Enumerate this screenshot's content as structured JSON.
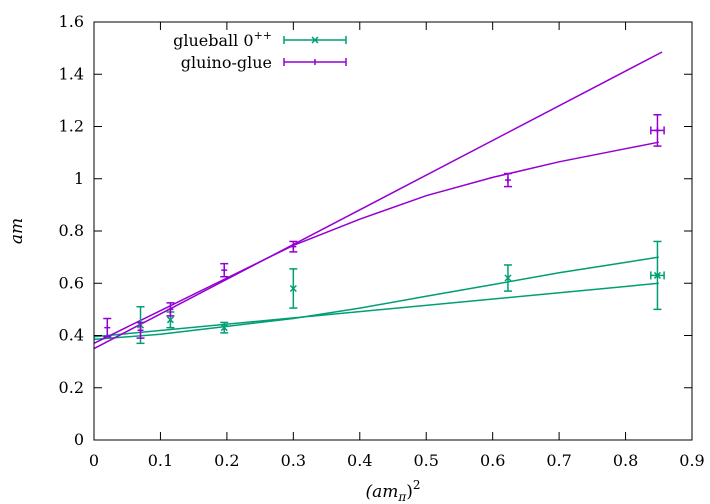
{
  "chart_data": {
    "type": "scatter",
    "title": "",
    "xlabel": "(am_π)^2",
    "ylabel": "am",
    "xlim": [
      0,
      0.9
    ],
    "ylim": [
      0,
      1.6
    ],
    "xticks": [
      "0",
      "0.1",
      "0.2",
      "0.3",
      "0.4",
      "0.5",
      "0.6",
      "0.7",
      "0.8",
      "0.9"
    ],
    "yticks": [
      "0",
      "0.2",
      "0.4",
      "0.6",
      "0.8",
      "1",
      "1.2",
      "1.4",
      "1.6"
    ],
    "grid": false,
    "legend_position": "top-left",
    "series": [
      {
        "name": "glueball 0++",
        "color": "#009e73",
        "marker": "x",
        "points": [
          {
            "x": 0.07,
            "y": 0.44,
            "yerr": 0.07
          },
          {
            "x": 0.115,
            "y": 0.46,
            "yerr": 0.03
          },
          {
            "x": 0.196,
            "y": 0.43,
            "yerr": 0.02
          },
          {
            "x": 0.3,
            "y": 0.58,
            "yerr": 0.075
          },
          {
            "x": 0.623,
            "y": 0.62,
            "yerr": 0.05
          },
          {
            "x": 0.848,
            "y": 0.63,
            "yerr": 0.13,
            "xerr": 0.01
          }
        ],
        "fits": [
          {
            "x": [
              0,
              0.85
            ],
            "y": [
              0.395,
              0.6
            ]
          },
          {
            "x": [
              0,
              0.1,
              0.2,
              0.3,
              0.4,
              0.5,
              0.6,
              0.7,
              0.8,
              0.85
            ],
            "y": [
              0.385,
              0.405,
              0.435,
              0.465,
              0.505,
              0.55,
              0.595,
              0.64,
              0.68,
              0.7
            ]
          }
        ]
      },
      {
        "name": "gluino-glue",
        "color": "#9400d3",
        "marker": "+",
        "points": [
          {
            "x": 0.02,
            "y": 0.43,
            "yerr": 0.035
          },
          {
            "x": 0.07,
            "y": 0.42,
            "yerr": 0.03
          },
          {
            "x": 0.115,
            "y": 0.5,
            "yerr": 0.025
          },
          {
            "x": 0.196,
            "y": 0.65,
            "yerr": 0.025
          },
          {
            "x": 0.3,
            "y": 0.74,
            "yerr": 0.02
          },
          {
            "x": 0.623,
            "y": 0.995,
            "yerr": 0.025
          },
          {
            "x": 0.848,
            "y": 1.185,
            "yerr": 0.06,
            "xerr": 0.01
          }
        ],
        "fits": [
          {
            "x": [
              0,
              0.855
            ],
            "y": [
              0.35,
              1.485
            ]
          },
          {
            "x": [
              0,
              0.1,
              0.2,
              0.3,
              0.4,
              0.5,
              0.6,
              0.7,
              0.8,
              0.85
            ],
            "y": [
              0.37,
              0.495,
              0.62,
              0.745,
              0.845,
              0.935,
              1.005,
              1.065,
              1.115,
              1.14
            ]
          }
        ]
      }
    ]
  }
}
